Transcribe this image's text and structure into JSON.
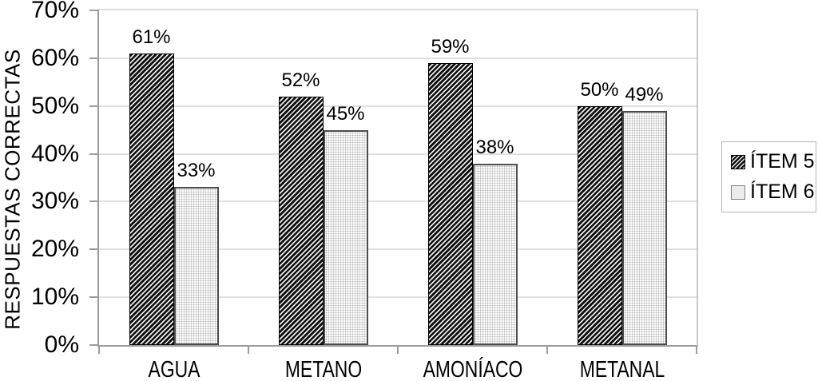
{
  "chart_data": {
    "type": "bar",
    "ylabel": "RESPUESTAS CORRECTAS",
    "xlabel": "",
    "categories": [
      "AGUA",
      "METANO",
      "AMONÍACO",
      "METANAL"
    ],
    "series": [
      {
        "name": "ÍTEM 5",
        "pattern": "diagonal-hatch",
        "values": [
          61,
          52,
          59,
          50
        ],
        "labels": [
          "61%",
          "52%",
          "59%",
          "50%"
        ]
      },
      {
        "name": "ÍTEM 6",
        "pattern": "dot-grid",
        "values": [
          33,
          45,
          38,
          49
        ],
        "labels": [
          "33%",
          "45%",
          "38%",
          "49%"
        ]
      }
    ],
    "ylim": [
      0,
      70
    ],
    "ytick_step": 10,
    "ytick_labels": [
      "0%",
      "10%",
      "20%",
      "30%",
      "40%",
      "50%",
      "60%",
      "70%"
    ],
    "grid": true,
    "legend_position": "right",
    "colors": {
      "background": "#ffffff",
      "text": "#000000",
      "axis": "#9c9c9c",
      "gridline": "#e0e0e0",
      "plot_right_border": "#c8c8c8",
      "hatch_dark": "#0d0d0d",
      "hatch_light": "#ededed",
      "dot_bar_background": "#fdfdfd",
      "dot_bar_dot": "#b8b8b8",
      "dot_bar_border": "#4d4d4d",
      "legend_border": "#b5b5b5"
    }
  }
}
